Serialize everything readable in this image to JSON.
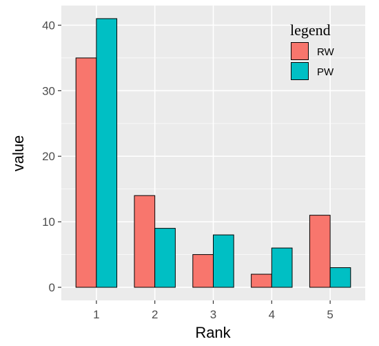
{
  "chart_data": {
    "type": "bar",
    "categories": [
      "1",
      "2",
      "3",
      "4",
      "5"
    ],
    "series": [
      {
        "name": "RW",
        "values": [
          35,
          14,
          5,
          2,
          11
        ],
        "color": "#F8766D"
      },
      {
        "name": "PW",
        "values": [
          41,
          9,
          8,
          6,
          3
        ],
        "color": "#00BFC4"
      }
    ],
    "title": "",
    "xlabel": "Rank",
    "ylabel": "value",
    "ylim": [
      -2,
      43
    ],
    "yticks": [
      0,
      10,
      20,
      30,
      40
    ],
    "grid": true,
    "legend": {
      "title": "legend",
      "position": "top-right"
    },
    "panel_color": "#EBEBEB",
    "grid_color": "#FFFFFF"
  }
}
